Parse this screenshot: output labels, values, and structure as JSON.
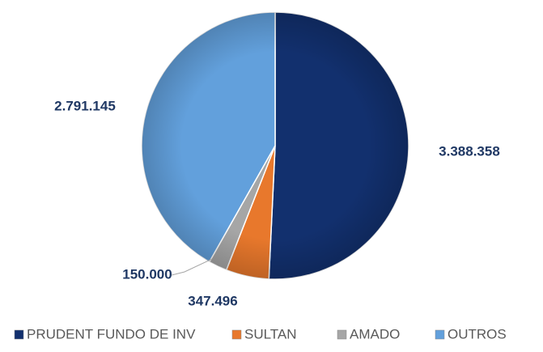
{
  "chart_data": {
    "type": "pie",
    "categories": [
      "PRUDENT FUNDO DE INV",
      "SULTAN",
      "AMADO",
      "OUTROS"
    ],
    "values": [
      3388358,
      347496,
      150000,
      2791145
    ],
    "value_labels": [
      "3.388.358",
      "347.496",
      "150.000",
      "2.791.145"
    ],
    "colors": [
      "#12306e",
      "#e8782c",
      "#a6a6a6",
      "#62a0dc"
    ],
    "legend": "bottom"
  }
}
